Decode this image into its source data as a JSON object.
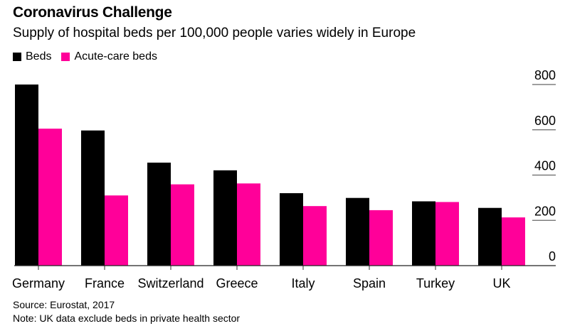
{
  "chart_data": {
    "type": "bar",
    "title": "Coronavirus Challenge",
    "subtitle": "Supply of hospital beds per 100,000 people varies widely in Europe",
    "categories": [
      "Germany",
      "France",
      "Switzerland",
      "Greece",
      "Italy",
      "Spain",
      "Turkey",
      "UK"
    ],
    "series": [
      {
        "name": "Beds",
        "color": "#000000",
        "values": [
          800,
          597,
          455,
          421,
          320,
          299,
          284,
          255
        ]
      },
      {
        "name": "Acute-care beds",
        "color": "#ff0099",
        "values": [
          605,
          310,
          359,
          363,
          263,
          245,
          281,
          213
        ]
      }
    ],
    "xlabel": "",
    "ylabel": "",
    "ylim": [
      0,
      800
    ],
    "yticks": [
      0,
      200,
      400,
      600,
      800
    ],
    "grid": true,
    "legend_position": "top-left",
    "axis_position": "right",
    "source": "Source: Eurostat, 2017",
    "note": "Note: UK data exclude beds in private health sector"
  }
}
